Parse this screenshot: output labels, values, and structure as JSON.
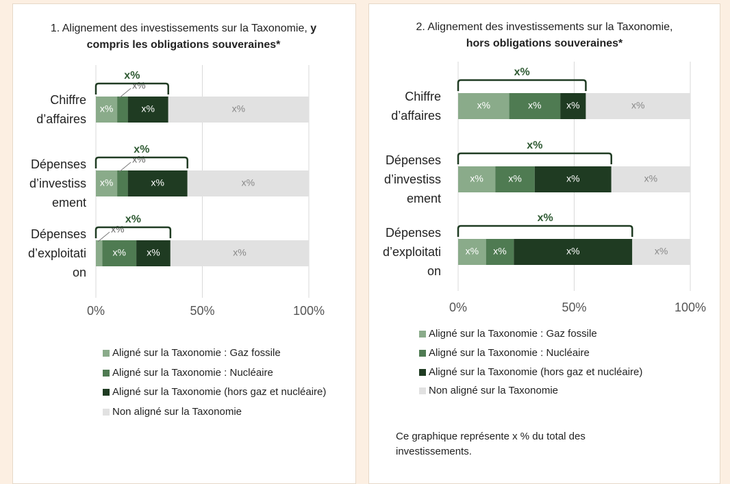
{
  "chart_data": [
    {
      "type": "bar",
      "orientation": "horizontal",
      "stacked": true,
      "title": "1. Alignement des investissements sur la Taxonomie, ",
      "title_bold": "y compris les obligations souveraines*",
      "categories": [
        "Chiffre d’affaires",
        "Dépenses d’investissement",
        "Dépenses d’exploitation"
      ],
      "series": [
        {
          "name": "Aligné sur la Taxonomie : Gaz fossile",
          "color": "#8aab8a",
          "values": [
            10,
            10,
            3
          ],
          "value_labels": [
            "x%",
            "x%",
            "x%"
          ]
        },
        {
          "name": "Aligné sur la Taxonomie : Nucléaire",
          "color": "#4f7b52",
          "values": [
            5,
            5,
            16
          ],
          "value_labels": [
            "x%",
            "x%",
            "x%"
          ]
        },
        {
          "name": "Aligné sur la Taxonomie (hors gaz et nucléaire)",
          "color": "#1f3b22",
          "values": [
            19,
            28,
            16
          ],
          "value_labels": [
            "x%",
            "x%",
            "x%"
          ]
        },
        {
          "name": "Non aligné sur la Taxonomie",
          "color": "#e1e1e1",
          "values": [
            66,
            57,
            65
          ],
          "value_labels": [
            "x%",
            "x%",
            "x%"
          ]
        }
      ],
      "bracket_labels": [
        "x%",
        "x%",
        "x%"
      ],
      "xlim": [
        0,
        100
      ],
      "xticks": [
        {
          "value": 0,
          "label": "0%"
        },
        {
          "value": 50,
          "label": "50%"
        },
        {
          "value": 100,
          "label": "100%"
        }
      ],
      "grid": true
    },
    {
      "type": "bar",
      "orientation": "horizontal",
      "stacked": true,
      "title": "2. Alignement des investissements sur la Taxonomie, ",
      "title_bold": "hors obligations souveraines*",
      "categories": [
        "Chiffre d’affaires",
        "Dépenses d’investissement",
        "Dépenses d’exploitation"
      ],
      "series": [
        {
          "name": "Aligné sur la Taxonomie : Gaz fossile",
          "color": "#8aab8a",
          "values": [
            22,
            16,
            12
          ],
          "value_labels": [
            "x%",
            "x%",
            "x%"
          ]
        },
        {
          "name": "Aligné sur la Taxonomie : Nucléaire",
          "color": "#4f7b52",
          "values": [
            22,
            17,
            12
          ],
          "value_labels": [
            "x%",
            "x%",
            "x%"
          ]
        },
        {
          "name": "Aligné sur la Taxonomie (hors gaz et nucléaire)",
          "color": "#1f3b22",
          "values": [
            11,
            33,
            51
          ],
          "value_labels": [
            "x%",
            "x%",
            "x%"
          ]
        },
        {
          "name": "Non aligné sur la Taxonomie",
          "color": "#e1e1e1",
          "values": [
            45,
            34,
            25
          ],
          "value_labels": [
            "x%",
            "x%",
            "x%"
          ]
        }
      ],
      "bracket_labels": [
        "x%",
        "x%",
        "x%"
      ],
      "xlim": [
        0,
        100
      ],
      "xticks": [
        {
          "value": 0,
          "label": "0%"
        },
        {
          "value": 50,
          "label": "50%"
        },
        {
          "value": 100,
          "label": "100%"
        }
      ],
      "grid": true,
      "note": "Ce graphique représente x % du total des investissements."
    }
  ]
}
